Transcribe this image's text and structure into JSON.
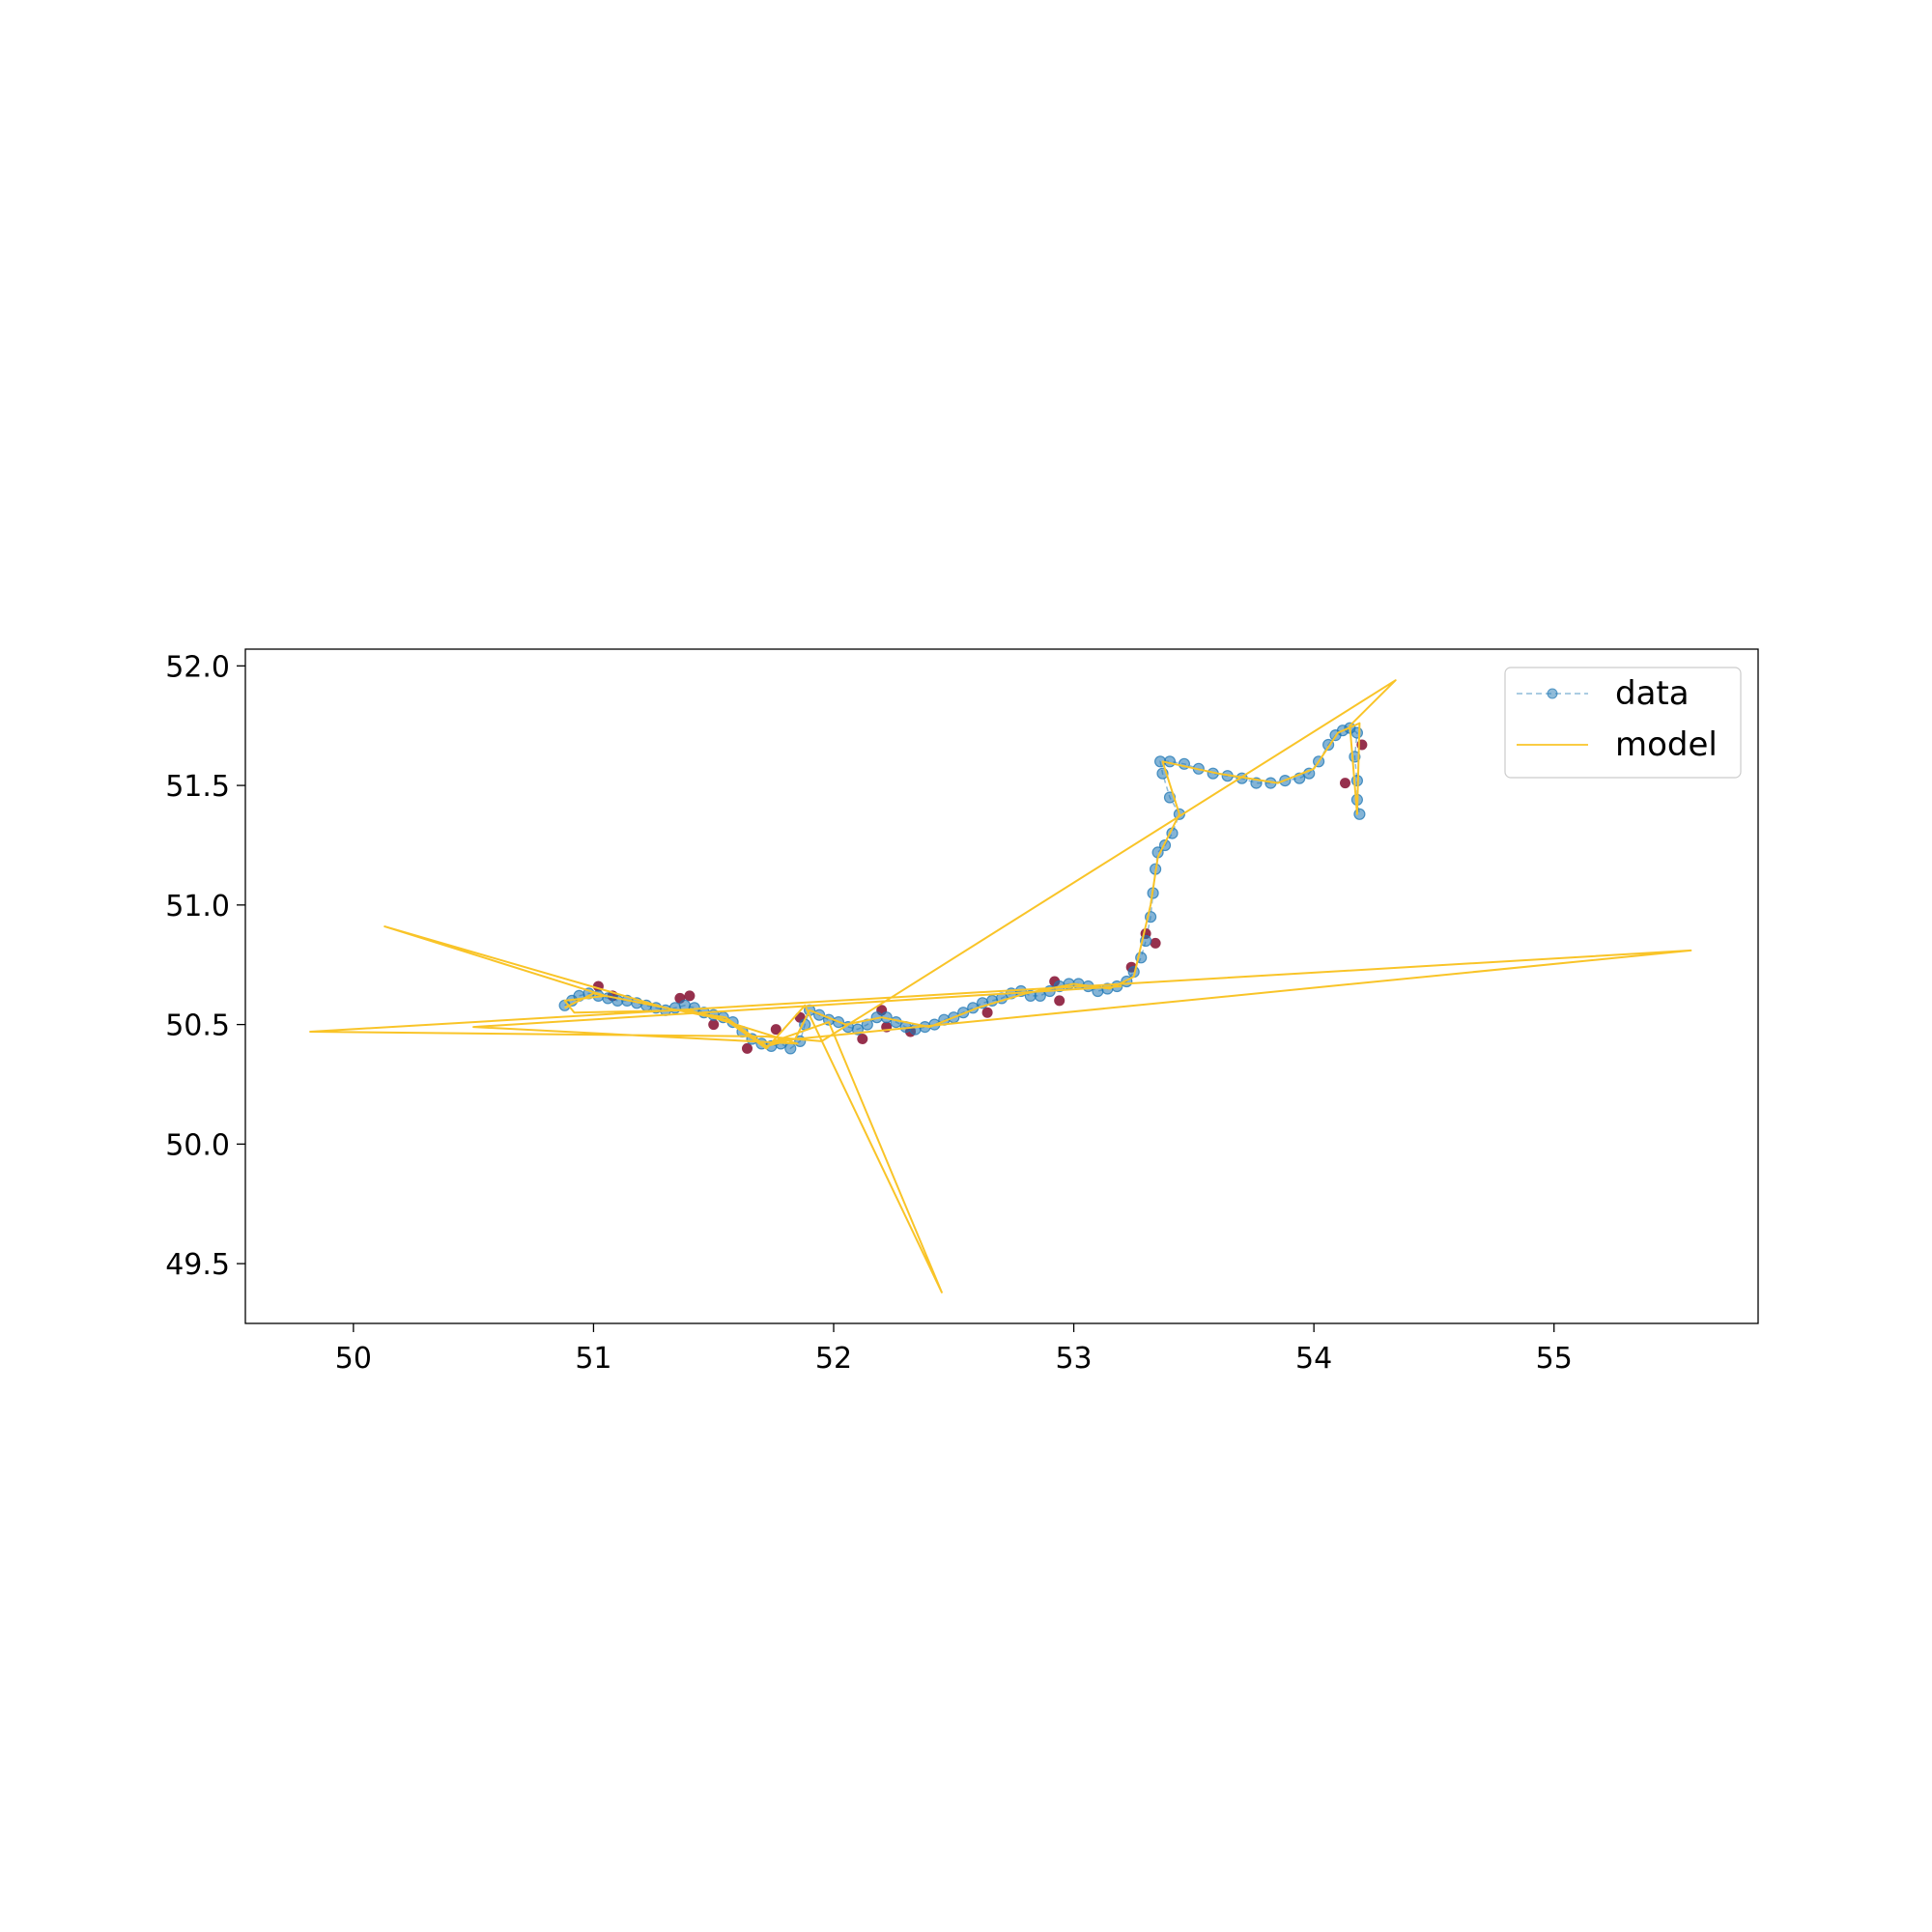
{
  "chart_data": {
    "type": "scatter",
    "title": "",
    "xlabel": "",
    "ylabel": "",
    "xlim": [
      49.55,
      55.85
    ],
    "ylim": [
      49.25,
      52.07
    ],
    "xticks": [
      "50",
      "51",
      "52",
      "53",
      "54",
      "55"
    ],
    "yticks": [
      "49.5",
      "50.0",
      "50.5",
      "51.0",
      "51.5",
      "52.0"
    ],
    "grid": false,
    "legend_position": "top-right",
    "legend": [
      {
        "label": "data",
        "style": "dashed line with circle markers",
        "color": "#1f77b4"
      },
      {
        "label": "model",
        "style": "solid line",
        "color": "#f9c428"
      }
    ],
    "colors": {
      "data": "#1f77b4",
      "outlier": "#8b1a3a",
      "model": "#f9c428"
    },
    "series": [
      {
        "name": "data",
        "points": [
          [
            50.88,
            50.58
          ],
          [
            50.91,
            50.6
          ],
          [
            50.94,
            50.62
          ],
          [
            50.98,
            50.63
          ],
          [
            51.02,
            50.62
          ],
          [
            51.06,
            50.61
          ],
          [
            51.1,
            50.6
          ],
          [
            51.14,
            50.6
          ],
          [
            51.18,
            50.59
          ],
          [
            51.22,
            50.58
          ],
          [
            51.26,
            50.57
          ],
          [
            51.3,
            50.56
          ],
          [
            51.34,
            50.57
          ],
          [
            51.38,
            50.58
          ],
          [
            51.42,
            50.57
          ],
          [
            51.46,
            50.55
          ],
          [
            51.5,
            50.54
          ],
          [
            51.54,
            50.53
          ],
          [
            51.58,
            50.51
          ],
          [
            51.62,
            50.47
          ],
          [
            51.66,
            50.44
          ],
          [
            51.7,
            50.42
          ],
          [
            51.74,
            50.41
          ],
          [
            51.78,
            50.42
          ],
          [
            51.82,
            50.4
          ],
          [
            51.86,
            50.43
          ],
          [
            51.88,
            50.5
          ],
          [
            51.9,
            50.56
          ],
          [
            51.94,
            50.54
          ],
          [
            51.98,
            50.52
          ],
          [
            52.02,
            50.51
          ],
          [
            52.06,
            50.49
          ],
          [
            52.1,
            50.48
          ],
          [
            52.14,
            50.5
          ],
          [
            52.18,
            50.53
          ],
          [
            52.22,
            50.53
          ],
          [
            52.26,
            50.51
          ],
          [
            52.3,
            50.49
          ],
          [
            52.34,
            50.48
          ],
          [
            52.38,
            50.49
          ],
          [
            52.42,
            50.5
          ],
          [
            52.46,
            50.52
          ],
          [
            52.5,
            50.53
          ],
          [
            52.54,
            50.55
          ],
          [
            52.58,
            50.57
          ],
          [
            52.62,
            50.59
          ],
          [
            52.66,
            50.6
          ],
          [
            52.7,
            50.61
          ],
          [
            52.74,
            50.63
          ],
          [
            52.78,
            50.64
          ],
          [
            52.82,
            50.62
          ],
          [
            52.86,
            50.62
          ],
          [
            52.9,
            50.64
          ],
          [
            52.94,
            50.66
          ],
          [
            52.98,
            50.67
          ],
          [
            53.02,
            50.67
          ],
          [
            53.06,
            50.66
          ],
          [
            53.1,
            50.64
          ],
          [
            53.14,
            50.65
          ],
          [
            53.18,
            50.66
          ],
          [
            53.22,
            50.68
          ],
          [
            53.25,
            50.72
          ],
          [
            53.28,
            50.78
          ],
          [
            53.3,
            50.85
          ],
          [
            53.32,
            50.95
          ],
          [
            53.33,
            51.05
          ],
          [
            53.34,
            51.15
          ],
          [
            53.35,
            51.22
          ],
          [
            53.38,
            51.25
          ],
          [
            53.41,
            51.3
          ],
          [
            53.44,
            51.38
          ],
          [
            53.4,
            51.45
          ],
          [
            53.37,
            51.55
          ],
          [
            53.36,
            51.6
          ],
          [
            53.4,
            51.6
          ],
          [
            53.46,
            51.59
          ],
          [
            53.52,
            51.57
          ],
          [
            53.58,
            51.55
          ],
          [
            53.64,
            51.54
          ],
          [
            53.7,
            51.53
          ],
          [
            53.76,
            51.51
          ],
          [
            53.82,
            51.51
          ],
          [
            53.88,
            51.52
          ],
          [
            53.94,
            51.53
          ],
          [
            53.98,
            51.55
          ],
          [
            54.02,
            51.6
          ],
          [
            54.06,
            51.67
          ],
          [
            54.09,
            51.71
          ],
          [
            54.12,
            51.73
          ],
          [
            54.15,
            51.74
          ],
          [
            54.18,
            51.72
          ],
          [
            54.17,
            51.62
          ],
          [
            54.18,
            51.52
          ],
          [
            54.18,
            51.44
          ],
          [
            54.19,
            51.38
          ]
        ]
      },
      {
        "name": "outliers",
        "points": [
          [
            51.02,
            50.66
          ],
          [
            51.08,
            50.62
          ],
          [
            51.36,
            50.61
          ],
          [
            51.4,
            50.62
          ],
          [
            51.5,
            50.5
          ],
          [
            51.64,
            50.4
          ],
          [
            51.76,
            50.48
          ],
          [
            51.86,
            50.53
          ],
          [
            52.12,
            50.44
          ],
          [
            52.2,
            50.56
          ],
          [
            52.22,
            50.49
          ],
          [
            52.32,
            50.47
          ],
          [
            52.64,
            50.55
          ],
          [
            52.92,
            50.68
          ],
          [
            52.94,
            50.6
          ],
          [
            53.24,
            50.74
          ],
          [
            53.3,
            50.88
          ],
          [
            53.34,
            50.84
          ],
          [
            54.13,
            51.51
          ],
          [
            54.2,
            51.67
          ]
        ]
      },
      {
        "name": "model",
        "points": [
          [
            50.88,
            50.57
          ],
          [
            51.0,
            50.63
          ],
          [
            51.15,
            50.6
          ],
          [
            51.35,
            50.56
          ],
          [
            51.55,
            50.53
          ],
          [
            51.72,
            50.41
          ],
          [
            51.84,
            50.44
          ],
          [
            51.9,
            50.56
          ],
          [
            52.05,
            50.5
          ],
          [
            52.2,
            50.53
          ],
          [
            52.4,
            50.49
          ],
          [
            52.6,
            50.57
          ],
          [
            52.8,
            50.63
          ],
          [
            53.0,
            50.67
          ],
          [
            53.15,
            50.65
          ],
          [
            53.25,
            50.7
          ],
          [
            53.32,
            51.0
          ],
          [
            53.35,
            51.2
          ],
          [
            53.44,
            51.38
          ],
          [
            53.37,
            51.6
          ],
          [
            53.6,
            51.55
          ],
          [
            53.85,
            51.51
          ],
          [
            54.0,
            51.57
          ],
          [
            54.1,
            51.72
          ],
          [
            54.19,
            51.76
          ],
          [
            54.18,
            51.38
          ],
          [
            54.15,
            51.75
          ],
          [
            54.34,
            51.94
          ],
          [
            51.95,
            50.43
          ],
          [
            51.72,
            50.45
          ],
          [
            49.82,
            50.47
          ],
          [
            55.57,
            50.81
          ],
          [
            51.75,
            50.43
          ],
          [
            51.98,
            50.51
          ],
          [
            52.45,
            49.38
          ],
          [
            51.88,
            50.58
          ],
          [
            51.72,
            50.4
          ],
          [
            51.55,
            50.52
          ],
          [
            51.3,
            50.57
          ],
          [
            50.13,
            50.91
          ],
          [
            51.05,
            50.62
          ],
          [
            50.88,
            50.6
          ],
          [
            50.92,
            50.55
          ],
          [
            51.4,
            50.56
          ],
          [
            51.85,
            50.42
          ],
          [
            50.5,
            50.49
          ],
          [
            53.2,
            50.66
          ]
        ]
      }
    ]
  }
}
